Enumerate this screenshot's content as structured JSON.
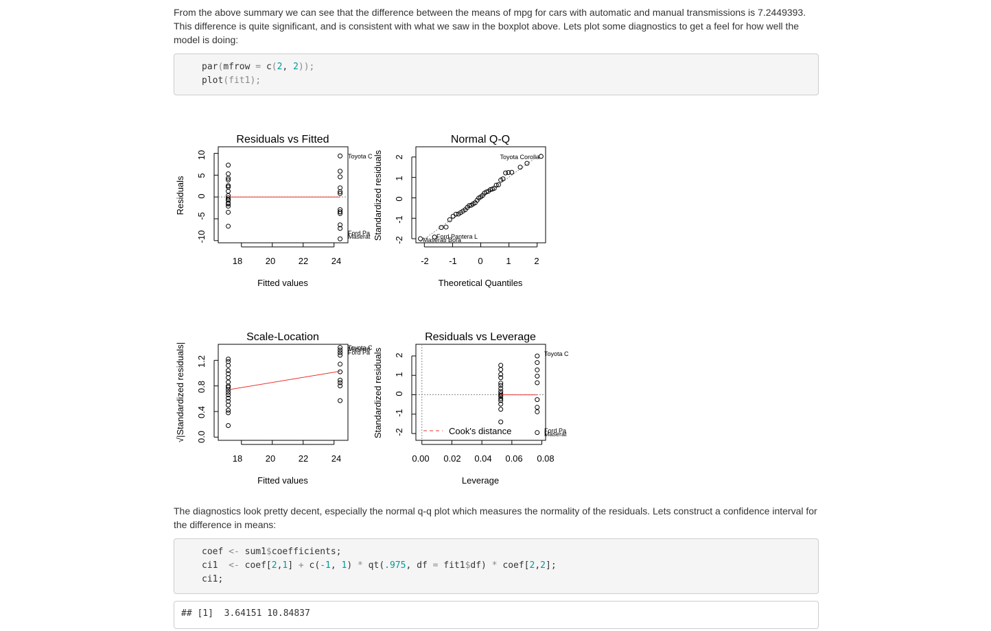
{
  "paragraphs": {
    "intro_line1": "From the above summary we can see that the difference between the means of mpg for cars with automatic and manual transmissions is 7.2449393.",
    "intro_line2": "This difference is quite significant, and is consistent with what we saw in the boxplot above. Lets plot some diagnostics to get a feel for how well the",
    "intro_line3": "model is doing:",
    "diag_line1": "The diagnostics look pretty decent, especially the normal q-q plot which measures the normality of the residuals. Lets construct a confidence interval for",
    "diag_line2": "the difference in means:"
  },
  "code1": {
    "l1_fn": "par",
    "l1_a": "(",
    "l1_arg": "mfrow",
    "l1_eq": " = ",
    "l1_c": "c",
    "l1_open": "(",
    "l1_n1": "2",
    "l1_sep": ", ",
    "l1_n2": "2",
    "l1_close": "));",
    "l2_fn": "plot",
    "l2_rest": "(fit1);"
  },
  "code2": {
    "l1_var": "coef ",
    "l1_op": "<-",
    "l1_rest": " sum1",
    "l1_dollar": "$",
    "l1_tail": "coefficients;",
    "l2_var": "ci1  ",
    "l2_op": "<-",
    "l2_a": " coef[",
    "l2_n1": "2",
    "l2_b": ",",
    "l2_n2": "1",
    "l2_c": "] ",
    "l2_plus": "+",
    "l2_d": " c(",
    "l2_n3": "-1",
    "l2_e": ", ",
    "l2_n4": "1",
    "l2_f": ") ",
    "l2_star": "*",
    "l2_g": " qt(",
    "l2_n5": ".975",
    "l2_h": ", df ",
    "l2_eq": "=",
    "l2_i": " fit1",
    "l2_dollar": "$",
    "l2_j": "df) ",
    "l2_star2": "*",
    "l2_k": " coef[",
    "l2_n6": "2",
    "l2_l": ",",
    "l2_n7": "2",
    "l2_m": "];",
    "l3": "ci1;"
  },
  "output": {
    "text": "## [1]  3.64151 10.84837"
  },
  "colors": {
    "fit_line": "#e8322b",
    "ref_line": "#888888",
    "point": "#000000"
  },
  "plots": {
    "rvf": {
      "title": "Residuals vs Fitted",
      "xlabel": "Fitted values",
      "ylabel": "Residuals",
      "xticks": [
        "18",
        "20",
        "22",
        "24"
      ],
      "yticks": [
        "-10",
        "-5",
        "0",
        "5",
        "10"
      ],
      "labels": [
        "Toyota C",
        "Ford Pa",
        "Maserat"
      ]
    },
    "qq": {
      "title": "Normal Q-Q",
      "xlabel": "Theoretical Quantiles",
      "ylabel": "Standardized residuals",
      "xticks": [
        "-2",
        "-1",
        "0",
        "1",
        "2"
      ],
      "yticks": [
        "-2",
        "-1",
        "0",
        "1",
        "2"
      ],
      "labels": [
        "Toyota Corolla",
        "Ford Pantera L",
        "Maserati Bora"
      ]
    },
    "sl": {
      "title": "Scale-Location",
      "xlabel": "Fitted values",
      "ylabel": "√|Standardized residuals|",
      "xticks": [
        "18",
        "20",
        "22",
        "24"
      ],
      "yticks": [
        "0.0",
        "0.4",
        "0.8",
        "1.2"
      ],
      "labels": [
        "Toyota C",
        "Maserat",
        "Ford Pa"
      ]
    },
    "rvl": {
      "title": "Residuals vs Leverage",
      "xlabel": "Leverage",
      "ylabel": "Standardized residuals",
      "xticks": [
        "0.00",
        "0.02",
        "0.04",
        "0.06",
        "0.08"
      ],
      "yticks": [
        "-2",
        "-1",
        "0",
        "1",
        "2"
      ],
      "labels": [
        "Toyota C",
        "Ford Pa",
        "Maserat"
      ],
      "legend": "Cook's distance"
    }
  },
  "chart_data": [
    {
      "type": "scatter",
      "title": "Residuals vs Fitted",
      "xlabel": "Fitted values",
      "ylabel": "Residuals",
      "xlim": [
        16.5,
        24.9
      ],
      "ylim": [
        -10.5,
        11.5
      ],
      "groups": [
        {
          "x": 17.147,
          "y": [
            3.9,
            2.3,
            1.3,
            0.3,
            2.3,
            -0.7,
            -1.6,
            -3.5,
            -0.6,
            5.3,
            2.6,
            4.3,
            -0.7,
            -1.4,
            -2.1,
            -0.7,
            -0.2,
            7.3,
            -6.7
          ]
        },
        {
          "x": 24.392,
          "y": [
            -3.4,
            -3.4,
            1.2,
            -2.9,
            -6.4,
            2.1,
            5.9,
            4.6,
            -9.6,
            9.4,
            -7.2,
            -3.8,
            0.8
          ]
        }
      ],
      "fit": [
        [
          17.147,
          0.0
        ],
        [
          24.392,
          0.0
        ]
      ],
      "labels": [
        {
          "text": "Toyota C",
          "x": 24.392,
          "y": 9.4
        },
        {
          "text": "Ford Pa",
          "x": 24.392,
          "y": -9.6
        },
        {
          "text": "Maserat",
          "x": 24.392,
          "y": -9.6
        }
      ]
    },
    {
      "type": "scatter",
      "title": "Normal Q-Q",
      "xlabel": "Theoretical Quantiles",
      "ylabel": "Standardized residuals",
      "xlim": [
        -2.3,
        2.3
      ],
      "ylim": [
        -2.2,
        2.5
      ],
      "points": [
        [
          -2.14,
          -2.0
        ],
        [
          -1.64,
          -1.92
        ],
        [
          -1.4,
          -1.45
        ],
        [
          -1.23,
          -1.43
        ],
        [
          -1.1,
          -1.07
        ],
        [
          -0.98,
          -0.9
        ],
        [
          -0.88,
          -0.8
        ],
        [
          -0.79,
          -0.79
        ],
        [
          -0.71,
          -0.72
        ],
        [
          -0.63,
          -0.65
        ],
        [
          -0.55,
          -0.58
        ],
        [
          -0.48,
          -0.47
        ],
        [
          -0.41,
          -0.38
        ],
        [
          -0.34,
          -0.36
        ],
        [
          -0.27,
          -0.3
        ],
        [
          -0.2,
          -0.24
        ],
        [
          -0.13,
          -0.12
        ],
        [
          -0.07,
          -0.01
        ],
        [
          0.0,
          0.05
        ],
        [
          0.07,
          0.12
        ],
        [
          0.13,
          0.23
        ],
        [
          0.2,
          0.29
        ],
        [
          0.27,
          0.32
        ],
        [
          0.34,
          0.4
        ],
        [
          0.41,
          0.43
        ],
        [
          0.48,
          0.47
        ],
        [
          0.55,
          0.62
        ],
        [
          0.63,
          0.64
        ],
        [
          0.71,
          0.87
        ],
        [
          0.79,
          0.93
        ],
        [
          0.88,
          1.22
        ],
        [
          0.98,
          1.24
        ],
        [
          1.1,
          1.25
        ],
        [
          1.4,
          1.5
        ],
        [
          1.64,
          1.69
        ],
        [
          2.14,
          2.03
        ]
      ],
      "labels": [
        {
          "text": "Toyota Corolla",
          "x": 2.14,
          "y": 2.03
        },
        {
          "text": "Ford Pantera L",
          "x": -1.64,
          "y": -1.92
        },
        {
          "text": "Maserati Bora",
          "x": -2.14,
          "y": -2.0
        }
      ]
    },
    {
      "type": "scatter",
      "title": "Scale-Location",
      "xlabel": "Fitted values",
      "ylabel": "√|Standardized residuals|",
      "xlim": [
        16.5,
        24.9
      ],
      "ylim": [
        -0.05,
        1.45
      ],
      "groups": [
        {
          "x": 17.147,
          "y": [
            1.22,
            1.18,
            1.12,
            1.04,
            0.99,
            0.93,
            0.86,
            0.8,
            0.78,
            0.74,
            0.7,
            0.66,
            0.61,
            0.56,
            0.5,
            0.42,
            0.38,
            0.18
          ]
        },
        {
          "x": 24.392,
          "y": [
            1.4,
            1.36,
            1.32,
            1.28,
            1.14,
            1.02,
            0.89,
            0.85,
            0.8,
            0.57
          ]
        }
      ],
      "fit": [
        [
          17.147,
          0.74
        ],
        [
          24.392,
          1.03
        ]
      ],
      "labels": [
        {
          "text": "Toyota C",
          "x": 24.392,
          "y": 1.4
        },
        {
          "text": "Maserat",
          "x": 24.392,
          "y": 1.36
        },
        {
          "text": "Ford Pa",
          "x": 24.392,
          "y": 1.32
        }
      ]
    },
    {
      "type": "scatter",
      "title": "Residuals vs Leverage",
      "xlabel": "Leverage",
      "ylabel": "Standardized residuals",
      "xlim": [
        -0.004,
        0.0825
      ],
      "ylim": [
        -2.35,
        2.6
      ],
      "groups": [
        {
          "x": 0.0526,
          "y": [
            1.52,
            1.3,
            1.05,
            0.88,
            0.6,
            0.48,
            0.32,
            0.17,
            0.05,
            -0.04,
            -0.08,
            -0.2,
            -0.3,
            -0.48,
            -0.75,
            -1.4
          ]
        },
        {
          "x": 0.0769,
          "y": [
            2.0,
            1.66,
            1.28,
            0.96,
            0.62,
            -0.25,
            -0.65,
            -0.88,
            -1.95
          ]
        }
      ],
      "fit": [
        [
          0.0526,
          0.0
        ],
        [
          0.0769,
          -0.01
        ]
      ],
      "legend": "Cook's distance",
      "labels": [
        {
          "text": "Toyota C",
          "x": 0.0769,
          "y": 2.0
        },
        {
          "text": "Ford Pa",
          "x": 0.0769,
          "y": -1.95
        },
        {
          "text": "Maserat",
          "x": 0.0769,
          "y": -1.95
        }
      ]
    }
  ]
}
